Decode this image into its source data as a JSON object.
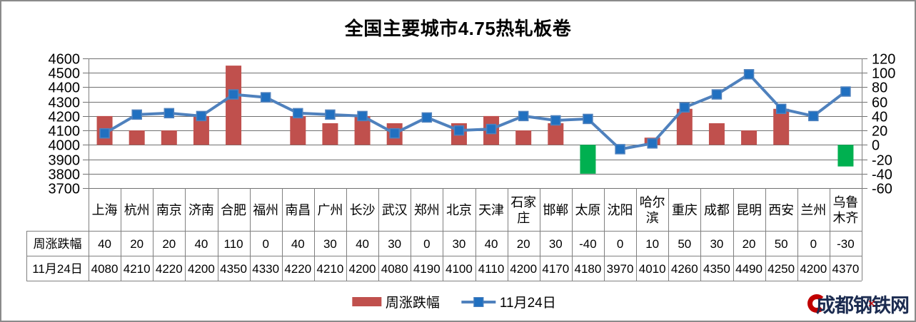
{
  "title": "全国主要城市4.75热轧板卷",
  "legend": {
    "bar_label": "周涨跌幅",
    "line_label": "11月24日"
  },
  "watermark": {
    "text": "成都钢铁网",
    "x_mark": "✕"
  },
  "colors": {
    "bar_positive": "#C0504D",
    "bar_negative": "#00B050",
    "line": "#4F81BD",
    "marker_fill": "#2170C0",
    "grid": "#707070",
    "table_border": "#808080",
    "neg_axis_label": "#00CC00",
    "axis_label": "#000000",
    "watermark_text": "#1B2B50",
    "watermark_accent": "#C00000"
  },
  "chart_data": {
    "type": "combo",
    "title": "全国主要城市4.75热轧板卷",
    "categories": [
      "上海",
      "杭州",
      "南京",
      "济南",
      "合肥",
      "福州",
      "南昌",
      "广州",
      "长沙",
      "武汉",
      "郑州",
      "北京",
      "天津",
      "石家庄",
      "邯郸",
      "太原",
      "沈阳",
      "哈尔滨",
      "重庆",
      "成都",
      "昆明",
      "西安",
      "兰州",
      "乌鲁木齐"
    ],
    "series": [
      {
        "name": "周涨跌幅",
        "type": "bar",
        "axis": "right",
        "values": [
          40,
          20,
          20,
          40,
          110,
          0,
          40,
          30,
          40,
          30,
          0,
          30,
          40,
          20,
          30,
          -40,
          0,
          10,
          50,
          30,
          20,
          50,
          0,
          -30
        ]
      },
      {
        "name": "11月24日",
        "type": "line",
        "axis": "left",
        "values": [
          4080,
          4210,
          4220,
          4200,
          4350,
          4330,
          4220,
          4210,
          4200,
          4080,
          4190,
          4100,
          4110,
          4200,
          4170,
          4180,
          3970,
          4010,
          4260,
          4350,
          4490,
          4250,
          4200,
          4370
        ]
      }
    ],
    "left_axis": {
      "min": 3700,
      "max": 4600,
      "step": 100
    },
    "right_axis": {
      "min": -60,
      "max": 120,
      "step": 20
    },
    "grid": true,
    "legend_position": "bottom",
    "data_table": true,
    "data_table_row_labels": [
      "周涨跌幅",
      "11月24日"
    ]
  }
}
